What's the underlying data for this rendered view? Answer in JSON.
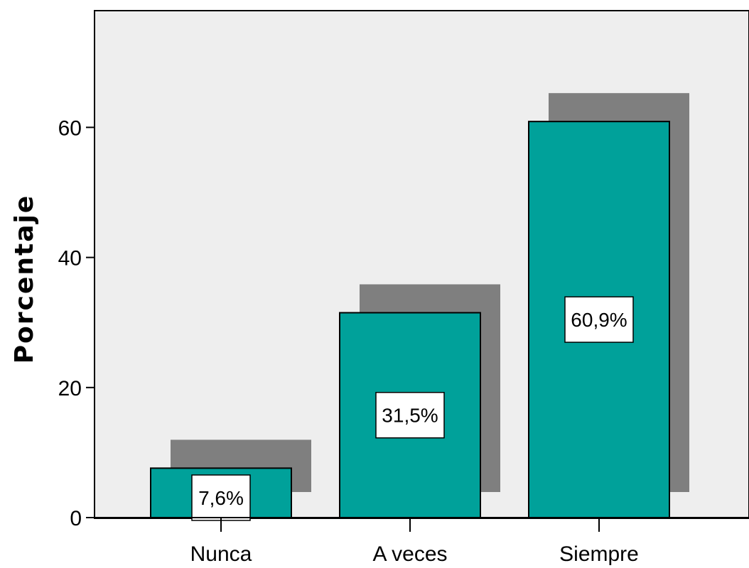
{
  "chart_data": {
    "type": "bar",
    "categories": [
      "Nunca",
      "A veces",
      "Siempre"
    ],
    "values": [
      7.6,
      31.5,
      60.9
    ],
    "data_labels": [
      "7,6%",
      "31,5%",
      "60,9%"
    ],
    "ylabel": "Porcentaje",
    "xlabel": "",
    "title": "",
    "ylim": [
      0,
      75
    ],
    "yticks": [
      0,
      20,
      40,
      60
    ],
    "ytick_labels": [
      "0",
      "20",
      "40",
      "60"
    ],
    "grid": false,
    "style": "3d-shadow",
    "colors": {
      "plot_background": "#eeeeee",
      "bar_fill": "#00a19a",
      "bar_shadow": "#7f7f7f",
      "axis": "#000000",
      "label_box": "#ffffff"
    }
  }
}
